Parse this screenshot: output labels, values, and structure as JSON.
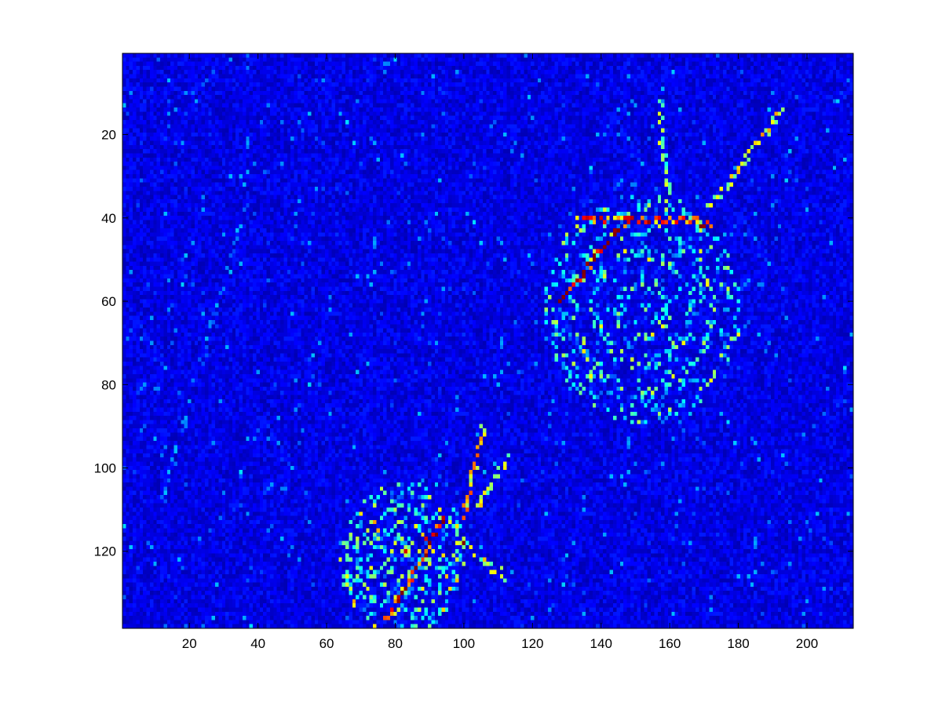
{
  "chart_data": {
    "type": "heatmap",
    "colormap": "jet",
    "background_level": 0.1,
    "title": "",
    "xlabel": "",
    "ylabel": "",
    "x_range": [
      0.5,
      213.5
    ],
    "y_range": [
      0.5,
      138.5
    ],
    "y_direction": "reversed",
    "xticks": [
      20,
      40,
      60,
      80,
      100,
      120,
      140,
      160,
      180,
      200
    ],
    "yticks": [
      20,
      40,
      60,
      80,
      100,
      120
    ],
    "xtick_labels": [
      "20",
      "40",
      "60",
      "80",
      "100",
      "120",
      "140",
      "160",
      "180",
      "200"
    ],
    "ytick_labels": [
      "20",
      "40",
      "60",
      "80",
      "100",
      "120"
    ],
    "grid": false,
    "colorbar": false,
    "features": [
      {
        "name": "upper-cell-body",
        "kind": "ellipse",
        "center": [
          152,
          62
        ],
        "radii": [
          27,
          26
        ],
        "intensity": 0.45
      },
      {
        "name": "upper-bright-ridge",
        "kind": "line",
        "from": [
          128,
          60
        ],
        "to": [
          146,
          42
        ],
        "intensity": 0.95
      },
      {
        "name": "upper-top-arc",
        "kind": "line",
        "from": [
          133,
          40
        ],
        "to": [
          172,
          41
        ],
        "intensity": 0.8
      },
      {
        "name": "upper-right-spot",
        "kind": "point",
        "at": [
          169,
          42
        ],
        "intensity": 0.95
      },
      {
        "name": "upper-lower-spot",
        "kind": "point",
        "at": [
          137,
          78
        ],
        "intensity": 0.8
      },
      {
        "name": "upper-filament",
        "kind": "line",
        "from": [
          172,
          37
        ],
        "to": [
          193,
          14
        ],
        "intensity": 0.6
      },
      {
        "name": "upper-short-filament",
        "kind": "line",
        "from": [
          160,
          37
        ],
        "to": [
          157,
          13
        ],
        "intensity": 0.5
      },
      {
        "name": "lower-cell-body",
        "kind": "ellipse",
        "center": [
          82,
          122
        ],
        "radii": [
          17,
          17
        ],
        "intensity": 0.5
      },
      {
        "name": "lower-bright-ridge",
        "kind": "line",
        "from": [
          78,
          136
        ],
        "to": [
          94,
          112
        ],
        "intensity": 0.9
      },
      {
        "name": "lower-spot-a",
        "kind": "point",
        "at": [
          83,
          120
        ],
        "intensity": 1.0
      },
      {
        "name": "lower-spot-b",
        "kind": "point",
        "at": [
          100,
          118
        ],
        "intensity": 0.95
      },
      {
        "name": "lower-spot-c",
        "kind": "point",
        "at": [
          98,
          114
        ],
        "intensity": 0.85
      },
      {
        "name": "lower-spot-d",
        "kind": "point",
        "at": [
          66,
          126
        ],
        "intensity": 0.8
      },
      {
        "name": "lower-filament",
        "kind": "line",
        "from": [
          100,
          112
        ],
        "to": [
          106,
          90
        ],
        "intensity": 0.65
      },
      {
        "name": "lower-filament-2",
        "kind": "line",
        "from": [
          104,
          110
        ],
        "to": [
          112,
          98
        ],
        "intensity": 0.55
      },
      {
        "name": "lower-branch",
        "kind": "line",
        "from": [
          102,
          120
        ],
        "to": [
          112,
          126
        ],
        "intensity": 0.55
      },
      {
        "name": "faint-left-arc",
        "kind": "line",
        "from": [
          12,
          108
        ],
        "to": [
          36,
          38
        ],
        "intensity": 0.25
      }
    ]
  }
}
